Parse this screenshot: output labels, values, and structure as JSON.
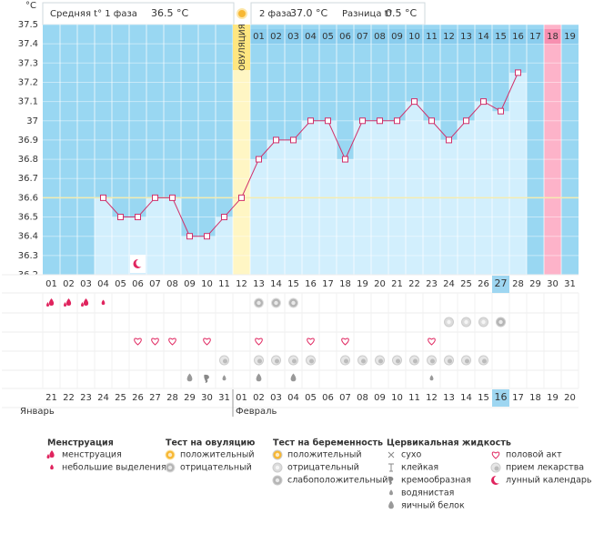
{
  "header": {
    "phase1_label": "Средняя t° 1 фаза",
    "phase1_value": "36.5 °C",
    "phase2_label": "2 фаза",
    "phase2_value": "37.0 °C",
    "diff_label": "Разница t°",
    "diff_value": "0.5 °C"
  },
  "chart_data": {
    "type": "line",
    "y_unit": "°C",
    "ovulation_label": "ОВУЛЯЦИЯ",
    "x": [
      "01",
      "02",
      "03",
      "04",
      "05",
      "06",
      "07",
      "08",
      "09",
      "10",
      "11",
      "12",
      "13",
      "14",
      "15",
      "16",
      "17",
      "18",
      "19",
      "20",
      "21",
      "22",
      "23",
      "24",
      "25",
      "26",
      "27",
      "28",
      "29",
      "30",
      "31"
    ],
    "values": [
      null,
      null,
      null,
      36.6,
      36.5,
      36.5,
      36.6,
      36.6,
      36.4,
      36.4,
      36.5,
      36.6,
      36.8,
      36.9,
      36.9,
      37.0,
      37.0,
      36.8,
      37.0,
      37.0,
      37.0,
      37.1,
      37.0,
      36.9,
      37.0,
      37.1,
      37.05,
      37.25,
      null,
      null,
      null
    ],
    "phase2_days": [
      "01",
      "02",
      "03",
      "04",
      "05",
      "06",
      "07",
      "08",
      "09",
      "10",
      "11",
      "12",
      "13",
      "14",
      "15",
      "16",
      "17",
      "18",
      "19"
    ],
    "dates": [
      "21",
      "22",
      "23",
      "24",
      "25",
      "26",
      "27",
      "28",
      "29",
      "30",
      "31",
      "01",
      "02",
      "03",
      "04",
      "05",
      "06",
      "07",
      "08",
      "09",
      "10",
      "11",
      "12",
      "13",
      "14",
      "15",
      "16",
      "17",
      "18",
      "19",
      "20"
    ],
    "months": [
      "Январь",
      "Февраль"
    ],
    "weekend_days": [
      6,
      7,
      14,
      15,
      21,
      22,
      28
    ],
    "today_day": 27,
    "expected_period_day": 30,
    "coverline": 36.6,
    "ylim": [
      36.2,
      37.5
    ],
    "yticks": [
      37.5,
      37.4,
      37.3,
      37.2,
      37.1,
      37,
      36.9,
      36.8,
      36.7,
      36.6,
      36.5,
      36.4,
      36.3,
      36.2
    ]
  },
  "legend": {
    "groups": [
      {
        "title": "Менструация",
        "items": [
          {
            "label": "менструация",
            "days": [
              1,
              2,
              3
            ]
          },
          {
            "label": "небольшие выделения",
            "days": [
              4
            ]
          }
        ]
      },
      {
        "title": "Тест на овуляцию",
        "items": [
          {
            "label": "положительный",
            "days": []
          },
          {
            "label": "отрицательный",
            "days": [
              13,
              14,
              15
            ]
          }
        ]
      },
      {
        "title": "Тест на беременность",
        "items": [
          {
            "label": "положительный",
            "days": []
          },
          {
            "label": "отрицательный",
            "days": [
              24,
              25,
              26
            ]
          },
          {
            "label": "слабоположительный",
            "days": [
              27
            ]
          }
        ]
      },
      {
        "title": "Цервикальная жидкость",
        "items": [
          {
            "label": "сухо",
            "days": []
          },
          {
            "label": "клейкая",
            "days": []
          },
          {
            "label": "кремообразная",
            "days": [
              10
            ]
          },
          {
            "label": "водянистая",
            "days": [
              11,
              23
            ]
          },
          {
            "label": "яичный белок",
            "days": [
              9,
              13,
              15
            ]
          }
        ]
      },
      {
        "items": [
          {
            "label": "половой акт",
            "days": [
              6,
              7,
              8,
              10,
              13,
              16,
              18,
              23
            ]
          },
          {
            "label": "прием лекарства",
            "days": [
              11,
              13,
              14,
              15,
              16,
              18,
              19,
              20,
              21,
              22,
              23,
              24,
              25,
              26
            ]
          },
          {
            "label": "лунный календарь",
            "days": [
              6
            ]
          }
        ]
      }
    ]
  }
}
